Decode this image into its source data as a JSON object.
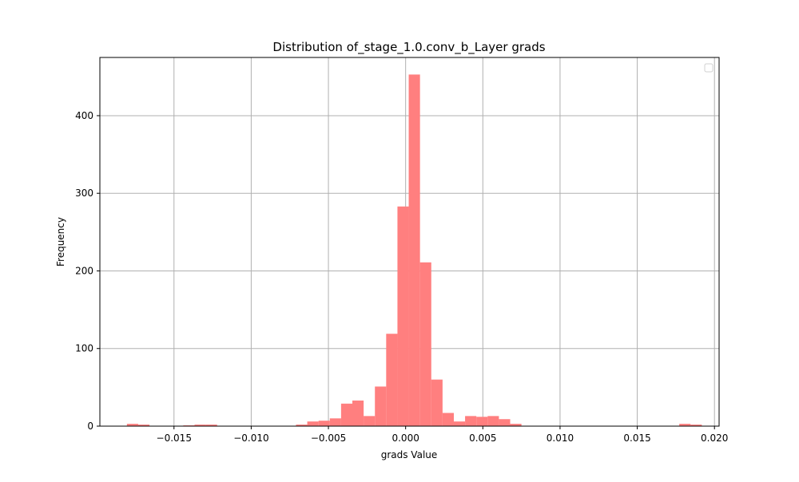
{
  "chart_data": {
    "type": "bar",
    "title": "Distribution of_stage_1.0.conv_b_Layer grads",
    "xlabel": "grads Value",
    "ylabel": "Frequency",
    "xlim": [
      -0.0198,
      0.0203
    ],
    "ylim": [
      0,
      475
    ],
    "xticks": [
      -0.015,
      -0.01,
      -0.005,
      0.0,
      0.005,
      0.01,
      0.015,
      0.02
    ],
    "xtick_labels": [
      "−0.015",
      "−0.010",
      "−0.005",
      "0.000",
      "0.005",
      "0.010",
      "0.015",
      "0.020"
    ],
    "yticks": [
      0,
      100,
      200,
      300,
      400
    ],
    "ytick_labels": [
      "0",
      "100",
      "200",
      "300",
      "400"
    ],
    "grid": true,
    "legend": "top-right (empty)",
    "bar_color": "#ff7f7f",
    "bin_width": 0.000731,
    "bins": [
      {
        "x": -0.01805,
        "value": 3
      },
      {
        "x": -0.01732,
        "value": 2
      },
      {
        "x": -0.01659,
        "value": 0
      },
      {
        "x": -0.01586,
        "value": 0
      },
      {
        "x": -0.01513,
        "value": 0
      },
      {
        "x": -0.0144,
        "value": 1
      },
      {
        "x": -0.01367,
        "value": 2
      },
      {
        "x": -0.01294,
        "value": 2
      },
      {
        "x": -0.01221,
        "value": 0
      },
      {
        "x": -0.01148,
        "value": 0
      },
      {
        "x": -0.01075,
        "value": 0
      },
      {
        "x": -0.01002,
        "value": 0
      },
      {
        "x": -0.00929,
        "value": 0
      },
      {
        "x": -0.00856,
        "value": 0
      },
      {
        "x": -0.00783,
        "value": 0
      },
      {
        "x": -0.0071,
        "value": 2
      },
      {
        "x": -0.00637,
        "value": 6
      },
      {
        "x": -0.00564,
        "value": 7
      },
      {
        "x": -0.00491,
        "value": 10
      },
      {
        "x": -0.00418,
        "value": 29
      },
      {
        "x": -0.00345,
        "value": 33
      },
      {
        "x": -0.00272,
        "value": 13
      },
      {
        "x": -0.00199,
        "value": 51
      },
      {
        "x": -0.00126,
        "value": 119
      },
      {
        "x": -0.00053,
        "value": 283
      },
      {
        "x": 0.0002,
        "value": 453
      },
      {
        "x": 0.00093,
        "value": 211
      },
      {
        "x": 0.00166,
        "value": 60
      },
      {
        "x": 0.00239,
        "value": 17
      },
      {
        "x": 0.00312,
        "value": 6
      },
      {
        "x": 0.00385,
        "value": 13
      },
      {
        "x": 0.00458,
        "value": 12
      },
      {
        "x": 0.00531,
        "value": 13
      },
      {
        "x": 0.00604,
        "value": 9
      },
      {
        "x": 0.00677,
        "value": 3
      },
      {
        "x": 0.0075,
        "value": 0
      },
      {
        "x": 0.00823,
        "value": 0
      },
      {
        "x": 0.00896,
        "value": 0
      },
      {
        "x": 0.00969,
        "value": 0
      },
      {
        "x": 0.01042,
        "value": 0
      },
      {
        "x": 0.01115,
        "value": 0
      },
      {
        "x": 0.01188,
        "value": 0
      },
      {
        "x": 0.01261,
        "value": 0
      },
      {
        "x": 0.01334,
        "value": 0
      },
      {
        "x": 0.01407,
        "value": 0
      },
      {
        "x": 0.0148,
        "value": 0
      },
      {
        "x": 0.01553,
        "value": 0
      },
      {
        "x": 0.01626,
        "value": 0
      },
      {
        "x": 0.01699,
        "value": 0
      },
      {
        "x": 0.01772,
        "value": 3
      },
      {
        "x": 0.01845,
        "value": 2
      }
    ]
  }
}
